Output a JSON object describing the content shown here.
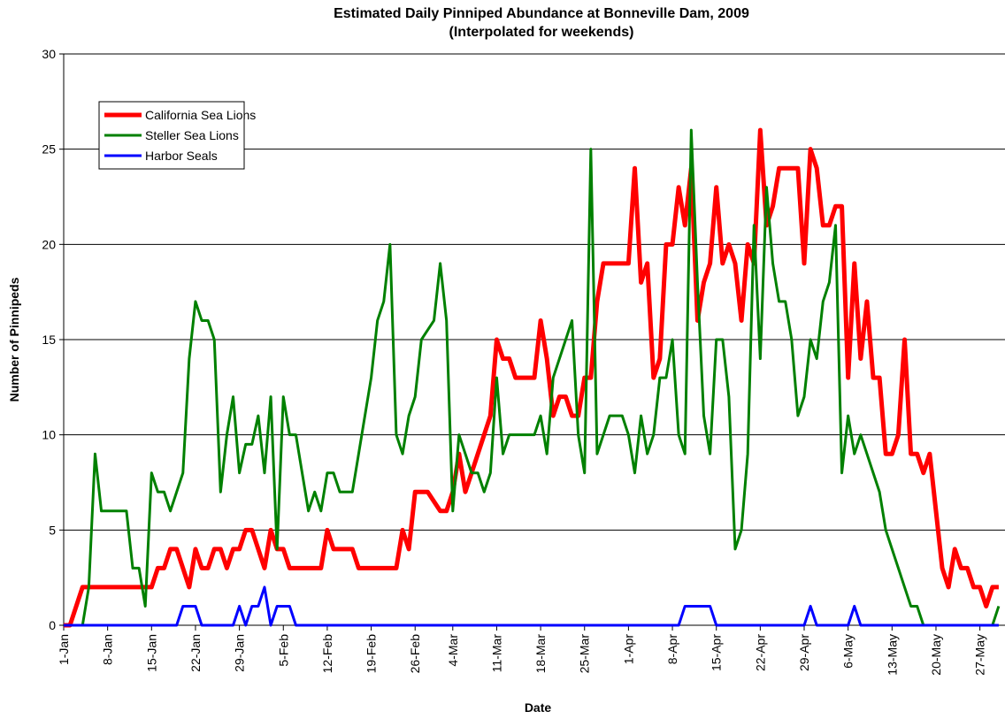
{
  "chart_data": {
    "type": "line",
    "title": "Estimated Daily Pinniped Abundance at Bonneville Dam, 2009",
    "subtitle": "(Interpolated for weekends)",
    "x_label": "Date",
    "y_label": "Number of Pinnipeds",
    "x": [
      1,
      2,
      3,
      4,
      5,
      6,
      7,
      8,
      9,
      10,
      11,
      12,
      13,
      14,
      15,
      16,
      17,
      18,
      19,
      20,
      21,
      22,
      23,
      24,
      25,
      26,
      27,
      28,
      29,
      30,
      31,
      32,
      33,
      34,
      35,
      36,
      37,
      38,
      39,
      40,
      41,
      42,
      43,
      44,
      45,
      46,
      47,
      48,
      49,
      50,
      51,
      52,
      53,
      54,
      55,
      56,
      57,
      58,
      59,
      60,
      61,
      62,
      63,
      64,
      65,
      66,
      67,
      68,
      69,
      70,
      71,
      72,
      73,
      74,
      75,
      76,
      77,
      78,
      79,
      80,
      81,
      82,
      83,
      84,
      85,
      86,
      87,
      88,
      89,
      90,
      91,
      92,
      93,
      94,
      95,
      96,
      97,
      98,
      99,
      100,
      101,
      102,
      103,
      104,
      105,
      106,
      107,
      108,
      109,
      110,
      111,
      112,
      113,
      114,
      115,
      116,
      117,
      118,
      119,
      120,
      121,
      122,
      123,
      124,
      125,
      126,
      127,
      128,
      129,
      130,
      131,
      132,
      133,
      134,
      135,
      136,
      137,
      138,
      139,
      140,
      141,
      142,
      143,
      144,
      145,
      146,
      147,
      148,
      149,
      150
    ],
    "series": [
      {
        "name": "California Sea Lions",
        "color": "#ff0000",
        "width": 5,
        "values": [
          0,
          0,
          1,
          2,
          2,
          2,
          2,
          2,
          2,
          2,
          2,
          2,
          2,
          2,
          2,
          3,
          3,
          4,
          4,
          3,
          2,
          4,
          3,
          3,
          4,
          4,
          3,
          4,
          4,
          5,
          5,
          4,
          3,
          5,
          4,
          4,
          3,
          3,
          3,
          3,
          3,
          3,
          5,
          4,
          4,
          4,
          4,
          3,
          3,
          3,
          3,
          3,
          3,
          3,
          5,
          4,
          7,
          7,
          7,
          6.5,
          6,
          6,
          7,
          9,
          7,
          8,
          9,
          10,
          11,
          15,
          14,
          14,
          13,
          13,
          13,
          13,
          16,
          14,
          11,
          12,
          12,
          11,
          11,
          13,
          13,
          17,
          19,
          19,
          19,
          19,
          19,
          24,
          18,
          19,
          13,
          14,
          20,
          20,
          23,
          21,
          24,
          16,
          18,
          19,
          23,
          19,
          20,
          19,
          16,
          20,
          19,
          26,
          21,
          22,
          24,
          24,
          24,
          24,
          19,
          25,
          24,
          21,
          21,
          22,
          22,
          13,
          19,
          14,
          17,
          13,
          13,
          9,
          9,
          10,
          15,
          9,
          9,
          8,
          9,
          6,
          3,
          2,
          4,
          3,
          3,
          2,
          2,
          1,
          2,
          2
        ]
      },
      {
        "name": "Steller Sea Lions",
        "color": "#008000",
        "width": 3,
        "values": [
          0,
          0,
          0,
          0,
          2,
          9,
          6,
          6,
          6,
          6,
          6,
          3,
          3,
          1,
          8,
          7,
          7,
          6,
          7,
          8,
          14,
          17,
          16,
          16,
          15,
          7,
          10,
          12,
          8,
          9.5,
          9.5,
          11,
          8,
          12,
          4,
          12,
          10,
          10,
          8,
          6,
          7,
          6,
          8,
          8,
          7,
          7,
          7,
          9,
          11,
          13,
          16,
          17,
          20,
          10,
          9,
          11,
          12,
          15,
          15.5,
          16,
          19,
          16,
          6,
          10,
          9,
          8,
          8,
          7,
          8,
          13,
          9,
          10,
          10,
          10,
          10,
          10,
          11,
          9,
          13,
          14,
          15,
          16,
          10,
          8,
          25,
          9,
          10,
          11,
          11,
          11,
          10,
          8,
          11,
          9,
          10,
          13,
          13,
          15,
          10,
          9,
          26,
          18,
          11,
          9,
          15,
          15,
          12,
          4,
          5,
          9,
          21,
          14,
          23,
          19,
          17,
          17,
          15,
          11,
          12,
          15,
          14,
          17,
          18,
          21,
          8,
          11,
          9,
          10,
          9,
          8,
          7,
          5,
          4,
          3,
          2,
          1,
          1,
          0,
          0,
          0,
          0,
          0,
          0,
          0,
          0,
          0,
          0,
          0,
          0,
          1
        ]
      },
      {
        "name": "Harbor Seals",
        "color": "#0000ff",
        "width": 3,
        "values": [
          0,
          0,
          0,
          0,
          0,
          0,
          0,
          0,
          0,
          0,
          0,
          0,
          0,
          0,
          0,
          0,
          0,
          0,
          0,
          1,
          1,
          1,
          0,
          0,
          0,
          0,
          0,
          0,
          1,
          0,
          1,
          1,
          2,
          0,
          1,
          1,
          1,
          0,
          0,
          0,
          0,
          0,
          0,
          0,
          0,
          0,
          0,
          0,
          0,
          0,
          0,
          0,
          0,
          0,
          0,
          0,
          0,
          0,
          0,
          0,
          0,
          0,
          0,
          0,
          0,
          0,
          0,
          0,
          0,
          0,
          0,
          0,
          0,
          0,
          0,
          0,
          0,
          0,
          0,
          0,
          0,
          0,
          0,
          0,
          0,
          0,
          0,
          0,
          0,
          0,
          0,
          0,
          0,
          0,
          0,
          0,
          0,
          0,
          0,
          1,
          1,
          1,
          1,
          1,
          0,
          0,
          0,
          0,
          0,
          0,
          0,
          0,
          0,
          0,
          0,
          0,
          0,
          0,
          0,
          1,
          0,
          0,
          0,
          0,
          0,
          0,
          1,
          0,
          0,
          0,
          0,
          0,
          0,
          0,
          0,
          0,
          0,
          0,
          0,
          0,
          0,
          0,
          0,
          0,
          0,
          0,
          0,
          0,
          0,
          0
        ]
      }
    ],
    "xlim": [
      1,
      151
    ],
    "xticks": [
      {
        "value": 1,
        "label": "1-Jan"
      },
      {
        "value": 8,
        "label": "8-Jan"
      },
      {
        "value": 15,
        "label": "15-Jan"
      },
      {
        "value": 22,
        "label": "22-Jan"
      },
      {
        "value": 29,
        "label": "29-Jan"
      },
      {
        "value": 36,
        "label": "5-Feb"
      },
      {
        "value": 43,
        "label": "12-Feb"
      },
      {
        "value": 50,
        "label": "19-Feb"
      },
      {
        "value": 57,
        "label": "26-Feb"
      },
      {
        "value": 63,
        "label": "4-Mar"
      },
      {
        "value": 70,
        "label": "11-Mar"
      },
      {
        "value": 77,
        "label": "18-Mar"
      },
      {
        "value": 84,
        "label": "25-Mar"
      },
      {
        "value": 91,
        "label": "1-Apr"
      },
      {
        "value": 98,
        "label": "8-Apr"
      },
      {
        "value": 105,
        "label": "15-Apr"
      },
      {
        "value": 112,
        "label": "22-Apr"
      },
      {
        "value": 119,
        "label": "29-Apr"
      },
      {
        "value": 126,
        "label": "6-May"
      },
      {
        "value": 133,
        "label": "13-May"
      },
      {
        "value": 140,
        "label": "20-May"
      },
      {
        "value": 147,
        "label": "27-May"
      }
    ],
    "ylim": [
      0,
      30
    ],
    "yticks": [
      0,
      5,
      10,
      15,
      20,
      25,
      30
    ],
    "grid": true,
    "legend": "upper-left"
  }
}
